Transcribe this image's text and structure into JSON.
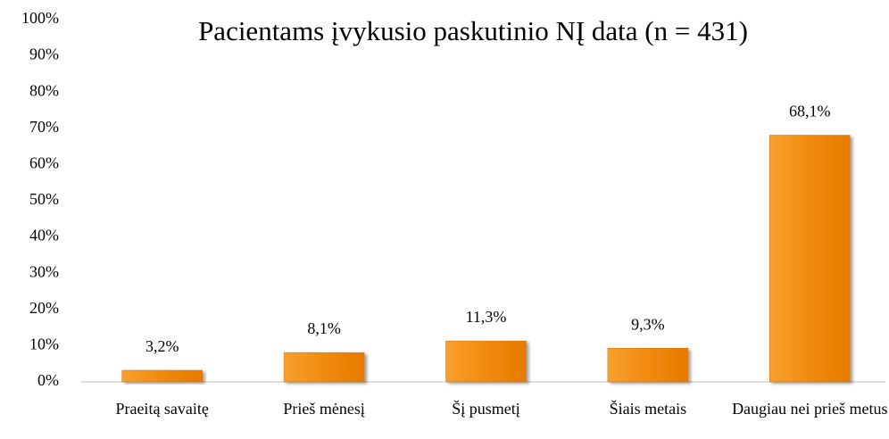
{
  "chart_data": {
    "type": "bar",
    "title": "Pacientams įvykusio paskutinio NĮ data (n = 431)",
    "categories": [
      "Praeitą savaitę",
      "Prieš mėnesį",
      "Šį pusmetį",
      "Šiais metais",
      "Daugiau nei prieš metus"
    ],
    "values": [
      3.2,
      8.1,
      11.3,
      9.3,
      68.1
    ],
    "value_labels": [
      "3,2%",
      "8,1%",
      "11,3%",
      "9,3%",
      "68,1%"
    ],
    "color": "#f28a0c",
    "ylim": [
      0,
      100
    ],
    "yticks": [
      {
        "value": 0,
        "label": "0%"
      },
      {
        "value": 10,
        "label": "10%"
      },
      {
        "value": 20,
        "label": "20%"
      },
      {
        "value": 30,
        "label": "30%"
      },
      {
        "value": 40,
        "label": "40%"
      },
      {
        "value": 50,
        "label": "50%"
      },
      {
        "value": 60,
        "label": "60%"
      },
      {
        "value": 70,
        "label": "70%"
      },
      {
        "value": 80,
        "label": "80%"
      },
      {
        "value": 90,
        "label": "90%"
      },
      {
        "value": 100,
        "label": "100%"
      }
    ],
    "grid": false
  }
}
